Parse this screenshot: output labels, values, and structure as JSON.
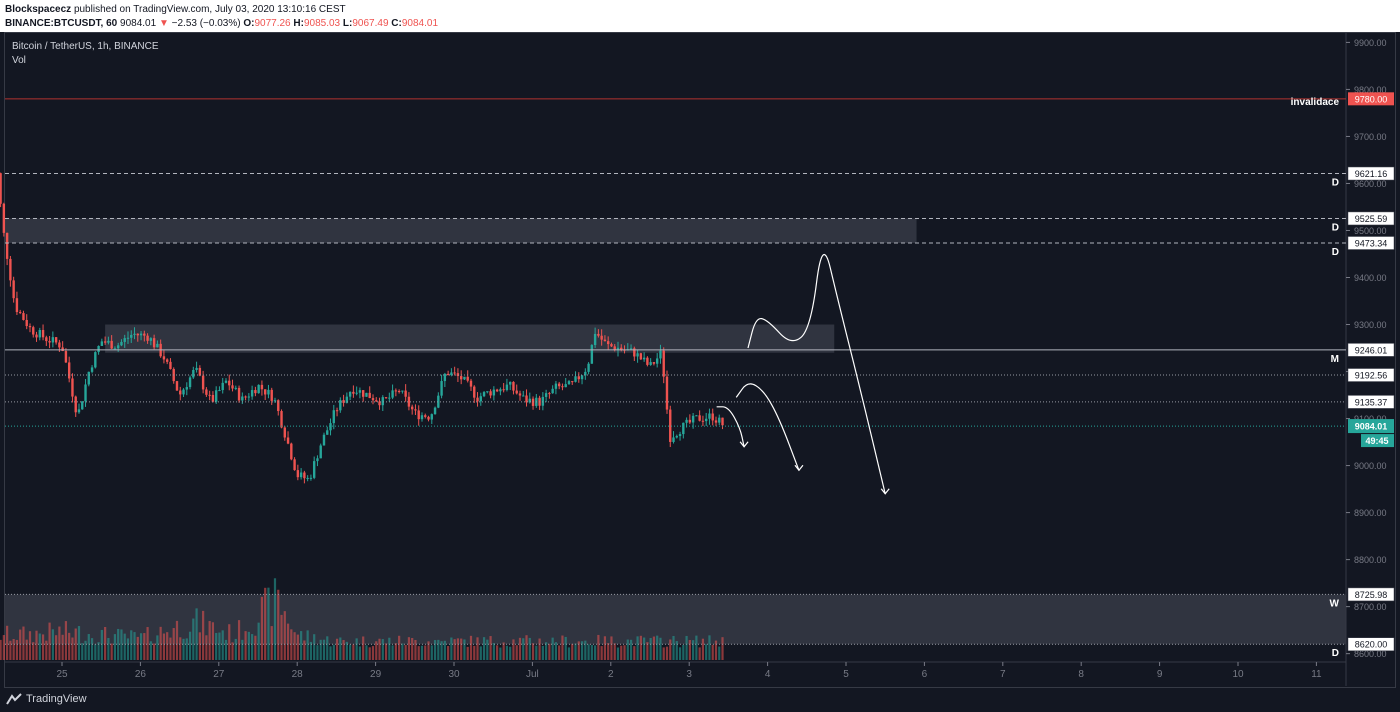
{
  "header": {
    "author": "Blockspacecz",
    "published": "published on TradingView.com, July 03, 2020 13:10:16 CEST",
    "symbol": "BINANCE:BTCUSDT, 60",
    "last": "9084.01",
    "change": "−2.53 (−0.03%)",
    "o_label": "O:",
    "o": "9077.26",
    "h_label": "H:",
    "h": "9085.03",
    "l_label": "L:",
    "l": "9067.49",
    "c_label": "C:",
    "c": "9084.01"
  },
  "legend": {
    "title": "Bitcoin / TetherUS, 1h, BINANCE",
    "vol": "Vol"
  },
  "footer": {
    "brand": "TradingView"
  },
  "colors": {
    "background": "#131722",
    "up": "#26a69a",
    "down": "#ef5350",
    "zone": "#363a45",
    "red_line": "#b2322f",
    "last_price": "#26a69a"
  },
  "chart_data": {
    "type": "candlestick",
    "timeframe": "1h",
    "x_ticks": [
      "25",
      "26",
      "27",
      "28",
      "29",
      "30",
      "Jul",
      "2",
      "3",
      "4",
      "5",
      "6",
      "7",
      "8",
      "9",
      "10",
      "11"
    ],
    "y_ticks": [
      "9900.00",
      "9800.00",
      "9700.00",
      "9600.00",
      "9500.00",
      "9400.00",
      "9300.00",
      "9200.00",
      "9100.00",
      "9000.00",
      "8900.00",
      "8800.00",
      "8700.00",
      "8600.00"
    ],
    "y_range": [
      8595,
      9920
    ],
    "last_price": {
      "value": 9084.01,
      "label": "9084.01",
      "countdown": "49:45"
    },
    "levels": [
      {
        "value": 9780.0,
        "label": "9780.00",
        "tag": "invalidace",
        "style": "solid-red"
      },
      {
        "value": 9621.16,
        "label": "9621.16",
        "tag": "D",
        "style": "dashed"
      },
      {
        "value": 9525.59,
        "label": "9525.59",
        "tag": "D",
        "style": "dashed"
      },
      {
        "value": 9473.34,
        "label": "9473.34",
        "tag": "D",
        "style": "dashed"
      },
      {
        "value": 9246.01,
        "label": "9246.01",
        "tag": "M",
        "style": "solid"
      },
      {
        "value": 9192.56,
        "label": "9192.56",
        "tag": "",
        "style": "dotted"
      },
      {
        "value": 9135.37,
        "label": "9135.37",
        "tag": "",
        "style": "dotted"
      },
      {
        "value": 8725.98,
        "label": "8725.98",
        "tag": "W",
        "style": "dotted"
      },
      {
        "value": 8620.0,
        "label": "8620.00",
        "tag": "D",
        "style": "dotted"
      }
    ],
    "zones": [
      {
        "from_day": 24.15,
        "to_day": 5.9,
        "top": 9525.59,
        "bottom": 9473.34
      },
      {
        "from_day": 25.55,
        "to_day": 4.85,
        "top": 9300,
        "bottom": 9240
      },
      {
        "from_day": 24.0,
        "to_day": 11.5,
        "top": 8725.98,
        "bottom": 8620.0
      }
    ],
    "price_path": [
      [
        24.05,
        9650
      ],
      [
        24.15,
        9660
      ],
      [
        24.25,
        9500
      ],
      [
        24.4,
        9340
      ],
      [
        24.6,
        9290
      ],
      [
        24.8,
        9270
      ],
      [
        25.0,
        9255
      ],
      [
        25.2,
        9105
      ],
      [
        25.35,
        9205
      ],
      [
        25.5,
        9265
      ],
      [
        25.7,
        9255
      ],
      [
        25.9,
        9280
      ],
      [
        26.1,
        9275
      ],
      [
        26.3,
        9230
      ],
      [
        26.5,
        9150
      ],
      [
        26.7,
        9205
      ],
      [
        26.9,
        9135
      ],
      [
        27.1,
        9180
      ],
      [
        27.3,
        9140
      ],
      [
        27.5,
        9170
      ],
      [
        27.7,
        9145
      ],
      [
        27.85,
        9065
      ],
      [
        28.0,
        8980
      ],
      [
        28.15,
        8970
      ],
      [
        28.3,
        9045
      ],
      [
        28.5,
        9120
      ],
      [
        28.7,
        9165
      ],
      [
        28.9,
        9150
      ],
      [
        29.1,
        9135
      ],
      [
        29.3,
        9160
      ],
      [
        29.5,
        9110
      ],
      [
        29.7,
        9105
      ],
      [
        29.9,
        9200
      ],
      [
        30.1,
        9185
      ],
      [
        30.3,
        9145
      ],
      [
        30.5,
        9160
      ],
      [
        30.7,
        9170
      ],
      [
        30.9,
        9140
      ],
      [
        31.1,
        9135
      ],
      [
        31.3,
        9165
      ],
      [
        31.5,
        9170
      ],
      [
        31.7,
        9210
      ],
      [
        31.8,
        9285
      ],
      [
        31.95,
        9255
      ],
      [
        32.1,
        9250
      ],
      [
        32.3,
        9240
      ],
      [
        32.5,
        9210
      ],
      [
        32.65,
        9240
      ],
      [
        32.75,
        9060
      ],
      [
        32.9,
        9080
      ],
      [
        33.1,
        9100
      ],
      [
        33.3,
        9105
      ],
      [
        33.45,
        9084.01
      ]
    ],
    "volume_path": [
      [
        24.1,
        0.35
      ],
      [
        24.3,
        0.5
      ],
      [
        24.5,
        0.3
      ],
      [
        25.2,
        0.9
      ],
      [
        25.5,
        0.35
      ],
      [
        26.0,
        0.3
      ],
      [
        26.5,
        0.35
      ],
      [
        27.0,
        0.25
      ],
      [
        27.5,
        0.3
      ],
      [
        27.85,
        0.95
      ],
      [
        28.2,
        0.35
      ],
      [
        28.6,
        0.25
      ],
      [
        29.0,
        0.3
      ],
      [
        29.5,
        0.3
      ],
      [
        30.0,
        0.35
      ],
      [
        30.5,
        0.3
      ],
      [
        31.0,
        0.25
      ],
      [
        31.7,
        0.5
      ],
      [
        32.2,
        0.3
      ],
      [
        32.75,
        0.85
      ],
      [
        33.0,
        0.3
      ],
      [
        33.45,
        0.2
      ]
    ],
    "scenario_paths": [
      {
        "points": [
          [
            33.75,
            9250
          ],
          [
            33.85,
            9315
          ],
          [
            34.0,
            9310
          ],
          [
            34.3,
            9255
          ],
          [
            34.55,
            9290
          ],
          [
            34.7,
            9490
          ],
          [
            34.9,
            9350
          ],
          [
            35.2,
            9150
          ],
          [
            35.5,
            8940
          ]
        ],
        "arrow": true
      },
      {
        "points": [
          [
            33.6,
            9145
          ],
          [
            33.75,
            9180
          ],
          [
            33.95,
            9160
          ],
          [
            34.15,
            9100
          ],
          [
            34.4,
            8990
          ]
        ],
        "arrow": true
      },
      {
        "points": [
          [
            33.35,
            9125
          ],
          [
            33.5,
            9125
          ],
          [
            33.65,
            9080
          ],
          [
            33.7,
            9040
          ]
        ],
        "arrow": true
      }
    ]
  }
}
